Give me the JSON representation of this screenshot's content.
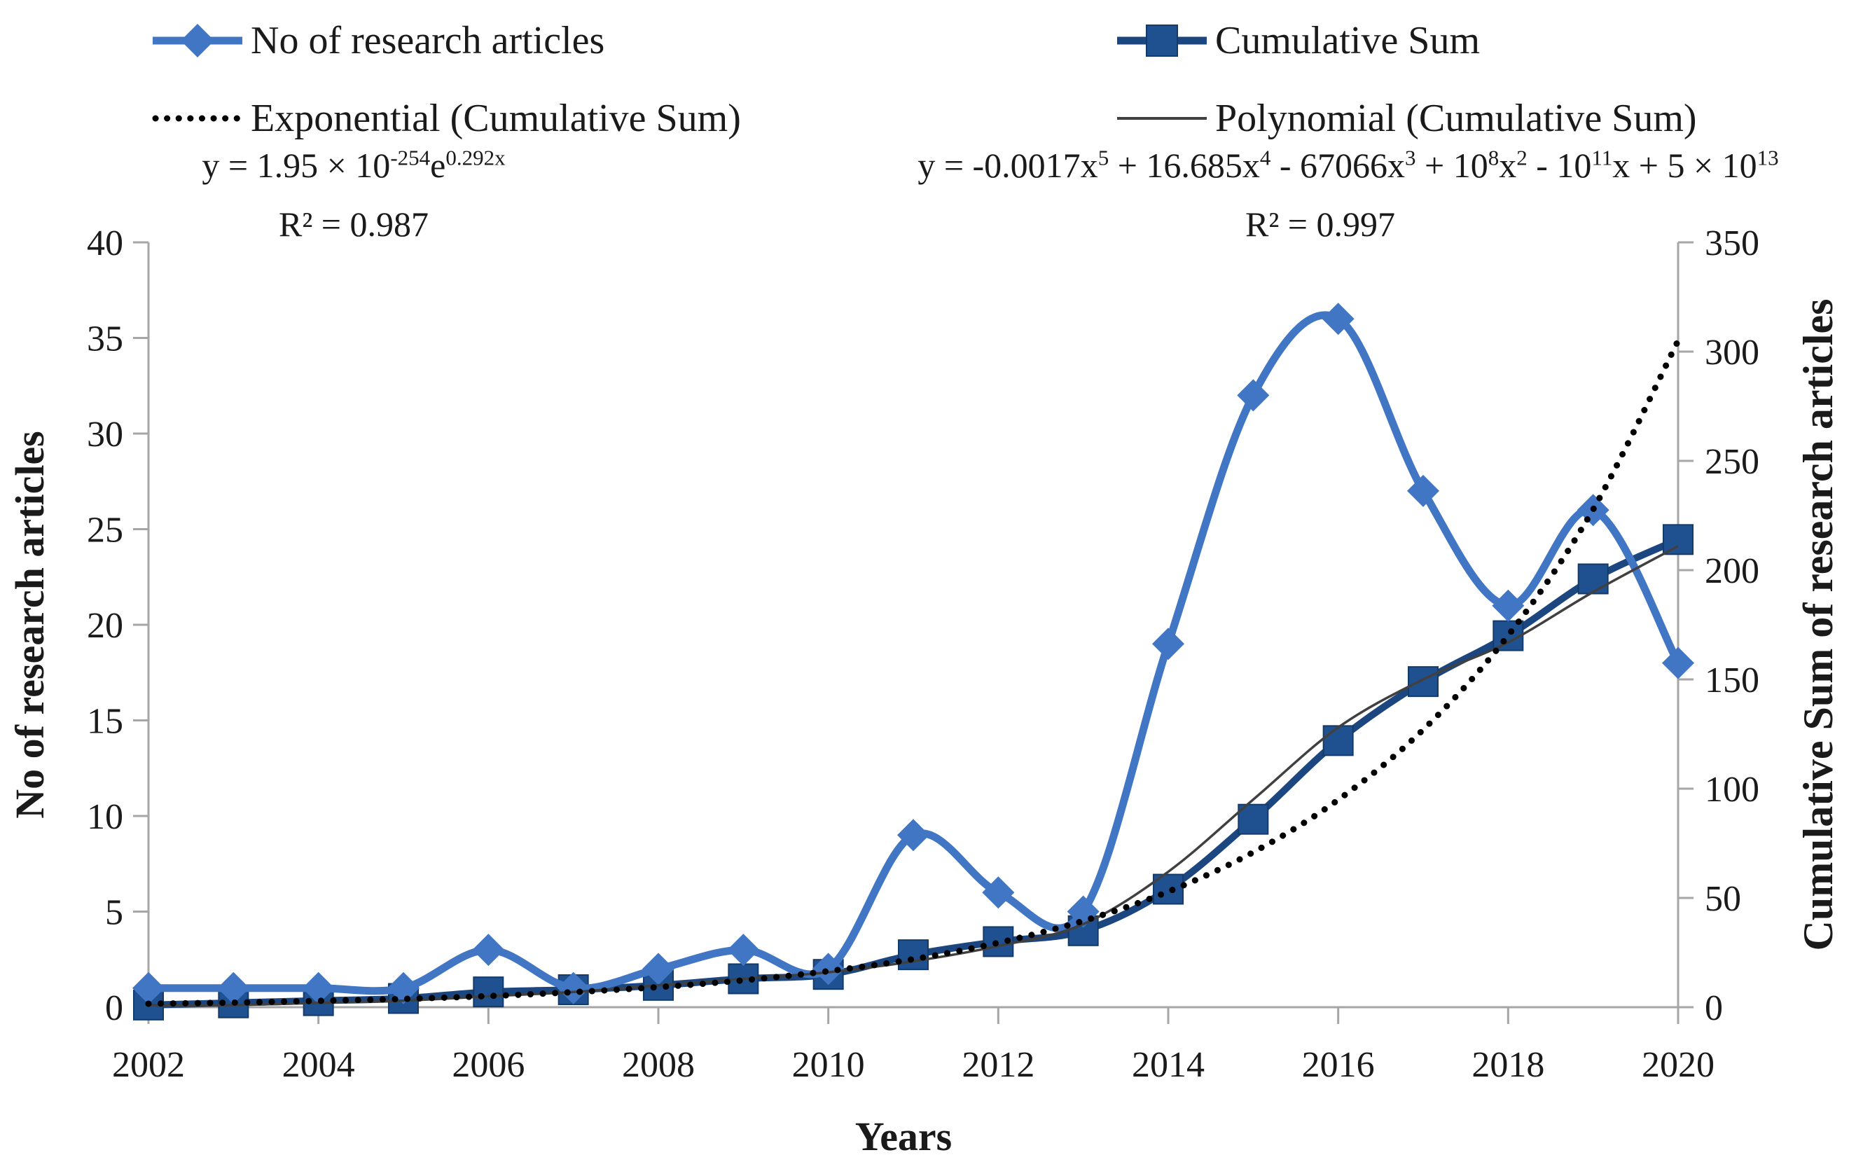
{
  "legend": {
    "articles": "No of research articles",
    "cumsum": "Cumulative Sum",
    "exponential": "Exponential (Cumulative Sum)",
    "polynomial": "Polynomial (Cumulative Sum)"
  },
  "equations": {
    "exponential": {
      "base1": "y = 1.95 × 10",
      "sup1": "-254",
      "base2": "e",
      "sup2": "0.292x",
      "r2": "R² = 0.987"
    },
    "polynomial": {
      "base1": "y = -0.0017x",
      "sup1": "5",
      "base2": " + 16.685x",
      "sup2": "4",
      "base3": " - 67066x",
      "sup3": "3",
      "base4": " + 10",
      "sup4": "8",
      "base5": "x",
      "sup5": "2",
      "base6": " - 10",
      "sup6": "11",
      "base7": "x + 5 × 10",
      "sup7": "13",
      "r2": "R² = 0.997"
    }
  },
  "chart_data": {
    "type": "line",
    "x": [
      2002,
      2003,
      2004,
      2005,
      2006,
      2007,
      2008,
      2009,
      2010,
      2011,
      2012,
      2013,
      2014,
      2015,
      2016,
      2017,
      2018,
      2019,
      2020
    ],
    "x_axis": {
      "label": "Years",
      "tick_years": [
        2002,
        2004,
        2006,
        2008,
        2010,
        2012,
        2014,
        2016,
        2018,
        2020
      ]
    },
    "left_axis": {
      "label": "No of research articles",
      "min": 0,
      "max": 40,
      "step": 5
    },
    "right_axis": {
      "label": "Cumulative Sum of research articles",
      "min": 0,
      "max": 350,
      "step": 50
    },
    "grid": false,
    "legend_position": "top",
    "series": [
      {
        "name": "No of research articles",
        "axis": "left",
        "kind": "data",
        "marker": "diamond",
        "color": "#4076C4",
        "line_color": "#4076C4",
        "values": [
          1,
          1,
          1,
          1,
          3,
          1,
          2,
          3,
          2,
          9,
          6,
          5,
          19,
          32,
          36,
          27,
          21,
          26,
          18
        ]
      },
      {
        "name": "Cumulative Sum",
        "axis": "right",
        "kind": "data",
        "marker": "square",
        "color": "#1F5191",
        "line_color": "#1B4680",
        "values": [
          1,
          2,
          3,
          4,
          7,
          8,
          10,
          13,
          15,
          24,
          30,
          35,
          54,
          86,
          122,
          149,
          170,
          196,
          214
        ]
      },
      {
        "name": "Exponential (Cumulative Sum)",
        "axis": "right",
        "kind": "trendline",
        "style": "dotted",
        "color": "#000000",
        "values": [
          1.6,
          2.1,
          2.9,
          3.8,
          5.1,
          6.9,
          9.2,
          12.3,
          16.5,
          22,
          29.5,
          39.5,
          52.9,
          70.9,
          94.9,
          127,
          170.1,
          227.8,
          305
        ]
      },
      {
        "name": "Polynomial (Cumulative Sum)",
        "axis": "right",
        "kind": "trendline",
        "style": "solid-thin",
        "color": "#404040",
        "values": [
          1,
          1,
          2,
          3,
          5,
          7,
          10,
          13,
          16,
          21,
          28,
          38,
          62,
          95,
          128,
          150,
          167,
          190,
          211
        ]
      }
    ]
  },
  "colors": {
    "articles_blue": "#4076C4",
    "cumsum_fill": "#1F5191",
    "cumsum_line": "#1B4680",
    "cumsum_marker_edge": "#133A69",
    "trend_black": "#000000",
    "trend_gray": "#404040",
    "axis_gray": "#A6A6A6"
  }
}
